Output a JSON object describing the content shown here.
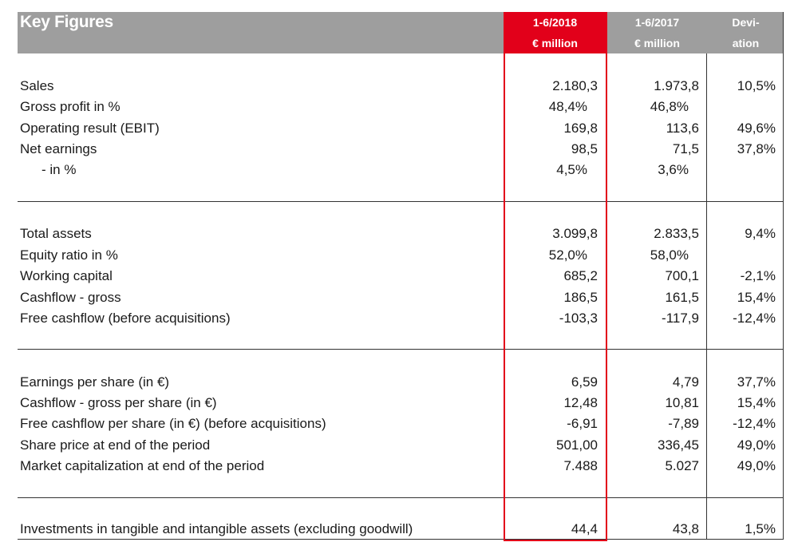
{
  "title": "Key Figures",
  "columns": [
    {
      "line1": "1-6/2018",
      "line2": "€ million"
    },
    {
      "line1": "1-6/2017",
      "line2": "€ million"
    },
    {
      "line1": "Devi-",
      "line2": "ation"
    }
  ],
  "sections": [
    {
      "rows": [
        {
          "label": "Sales",
          "v2018": "2.180,3",
          "v2017": "1.973,8",
          "dev": "10,5%"
        },
        {
          "label": "Gross profit in %",
          "v2018": "48,4%",
          "v2017": "46,8%",
          "dev": ""
        },
        {
          "label": "Operating result (EBIT)",
          "v2018": "169,8",
          "v2017": "113,6",
          "dev": "49,6%"
        },
        {
          "label": "Net earnings",
          "v2018": "98,5",
          "v2017": "71,5",
          "dev": "37,8%"
        },
        {
          "label": "- in %",
          "v2018": "4,5%",
          "v2017": "3,6%",
          "dev": ""
        }
      ]
    },
    {
      "rows": [
        {
          "label": "Total assets",
          "v2018": "3.099,8",
          "v2017": "2.833,5",
          "dev": "9,4%"
        },
        {
          "label": "Equity ratio in %",
          "v2018": "52,0%",
          "v2017": "58,0%",
          "dev": ""
        },
        {
          "label": "Working capital",
          "v2018": "685,2",
          "v2017": "700,1",
          "dev": "-2,1%"
        },
        {
          "label": "Cashflow - gross",
          "v2018": "186,5",
          "v2017": "161,5",
          "dev": "15,4%"
        },
        {
          "label": "Free cashflow (before acquisitions)",
          "v2018": "-103,3",
          "v2017": "-117,9",
          "dev": "-12,4%"
        }
      ]
    },
    {
      "rows": [
        {
          "label": "Earnings per share (in €)",
          "v2018": "6,59",
          "v2017": "4,79",
          "dev": "37,7%"
        },
        {
          "label": "Cashflow - gross per share (in €)",
          "v2018": "12,48",
          "v2017": "10,81",
          "dev": "15,4%"
        },
        {
          "label": "Free cashflow per share (in €) (before acquisitions)",
          "v2018": "-6,91",
          "v2017": "-7,89",
          "dev": "-12,4%"
        },
        {
          "label": "Share price at end of the period",
          "v2018": "501,00",
          "v2017": "336,45",
          "dev": "49,0%"
        },
        {
          "label": "Market capitalization at end of the period",
          "v2018": "7.488",
          "v2017": "5.027",
          "dev": "49,0%"
        }
      ]
    },
    {
      "rows": [
        {
          "label": "Investments in tangible and intangible assets (excluding goodwill)",
          "v2018": "44,4",
          "v2017": "43,8",
          "dev": "1,5%"
        }
      ]
    }
  ],
  "colors": {
    "header_gray": "#9e9e9e",
    "highlight_red": "#e2001a"
  }
}
